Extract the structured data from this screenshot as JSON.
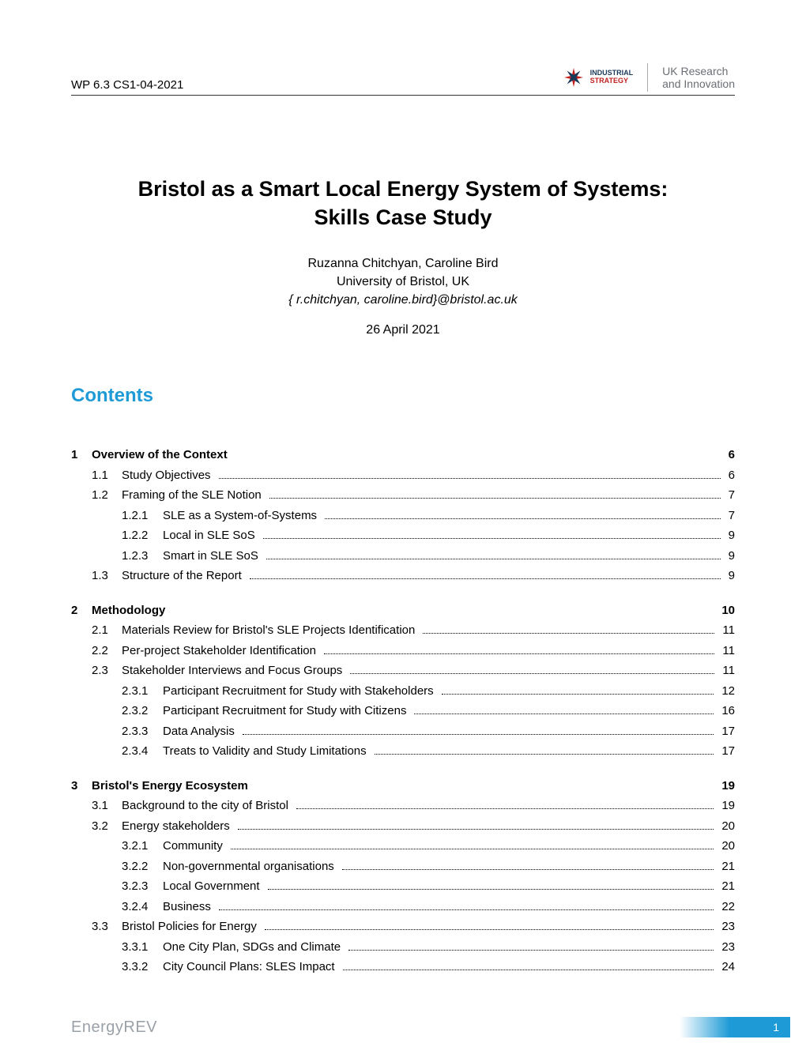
{
  "header": {
    "doc_id": "WP 6.3 CS1-04-2021",
    "logo_is_line1": "INDUSTRIAL",
    "logo_is_line2": "STRATEGY",
    "logo_ukri_line1": "UK Research",
    "logo_ukri_line2": "and Innovation"
  },
  "title": {
    "line1": "Bristol as a Smart Local Energy System of Systems:",
    "line2": "Skills Case Study"
  },
  "authors": {
    "names": "Ruzanna Chitchyan, Caroline Bird",
    "affiliation": "University of Bristol, UK",
    "email": "{ r.chitchyan, caroline.bird}@bristol.ac.uk"
  },
  "date": "26 April 2021",
  "contents_heading": "Contents",
  "colors": {
    "accent": "#1e9bd6",
    "text": "#000000",
    "is_navy": "#1a3a5a",
    "is_red": "#c02020",
    "ukri_grey": "#6a6f75"
  },
  "toc": [
    {
      "num": "1",
      "label": "Overview of the Context",
      "page": "6",
      "level": 1,
      "children": [
        {
          "num": "1.1",
          "label": "Study Objectives",
          "page": "6",
          "level": 2
        },
        {
          "num": "1.2",
          "label": "Framing of the SLE Notion",
          "page": "7",
          "level": 2,
          "children": [
            {
              "num": "1.2.1",
              "label": "SLE as a System-of-Systems",
              "page": "7",
              "level": 3
            },
            {
              "num": "1.2.2",
              "label": "Local in SLE SoS",
              "page": "9",
              "level": 3
            },
            {
              "num": "1.2.3",
              "label": "Smart in SLE SoS",
              "page": "9",
              "level": 3
            }
          ]
        },
        {
          "num": "1.3",
          "label": "Structure of the Report",
          "page": "9",
          "level": 2
        }
      ]
    },
    {
      "num": "2",
      "label": "Methodology",
      "page": "10",
      "level": 1,
      "children": [
        {
          "num": "2.1",
          "label": "Materials Review for Bristol's SLE Projects Identification",
          "page": "11",
          "level": 2
        },
        {
          "num": "2.2",
          "label": "Per-project Stakeholder Identification",
          "page": "11",
          "level": 2
        },
        {
          "num": "2.3",
          "label": "Stakeholder Interviews and Focus Groups",
          "page": "11",
          "level": 2,
          "children": [
            {
              "num": "2.3.1",
              "label": "Participant Recruitment for Study with Stakeholders",
              "page": "12",
              "level": 3
            },
            {
              "num": "2.3.2",
              "label": "Participant Recruitment for Study with Citizens",
              "page": "16",
              "level": 3
            },
            {
              "num": "2.3.3",
              "label": "Data Analysis",
              "page": "17",
              "level": 3
            },
            {
              "num": "2.3.4",
              "label": "Treats to Validity and Study Limitations",
              "page": "17",
              "level": 3
            }
          ]
        }
      ]
    },
    {
      "num": "3",
      "label": "Bristol's Energy Ecosystem",
      "page": "19",
      "level": 1,
      "children": [
        {
          "num": "3.1",
          "label": "Background to the city of Bristol",
          "page": "19",
          "level": 2
        },
        {
          "num": "3.2",
          "label": "Energy stakeholders",
          "page": "20",
          "level": 2,
          "children": [
            {
              "num": "3.2.1",
              "label": "Community",
              "page": "20",
              "level": 3
            },
            {
              "num": "3.2.2",
              "label": "Non-governmental organisations",
              "page": "21",
              "level": 3
            },
            {
              "num": "3.2.3",
              "label": "Local Government",
              "page": "21",
              "level": 3
            },
            {
              "num": "3.2.4",
              "label": "Business",
              "page": "22",
              "level": 3
            }
          ]
        },
        {
          "num": "3.3",
          "label": "Bristol Policies for Energy",
          "page": "23",
          "level": 2,
          "children": [
            {
              "num": "3.3.1",
              "label": "One City Plan, SDGs and Climate",
              "page": "23",
              "level": 3
            },
            {
              "num": "3.3.2",
              "label": "City Council Plans: SLES Impact",
              "page": "24",
              "level": 3
            }
          ]
        }
      ]
    }
  ],
  "footer": {
    "logo_part1": "Energy",
    "logo_part2": "REV",
    "page_number": "1"
  }
}
